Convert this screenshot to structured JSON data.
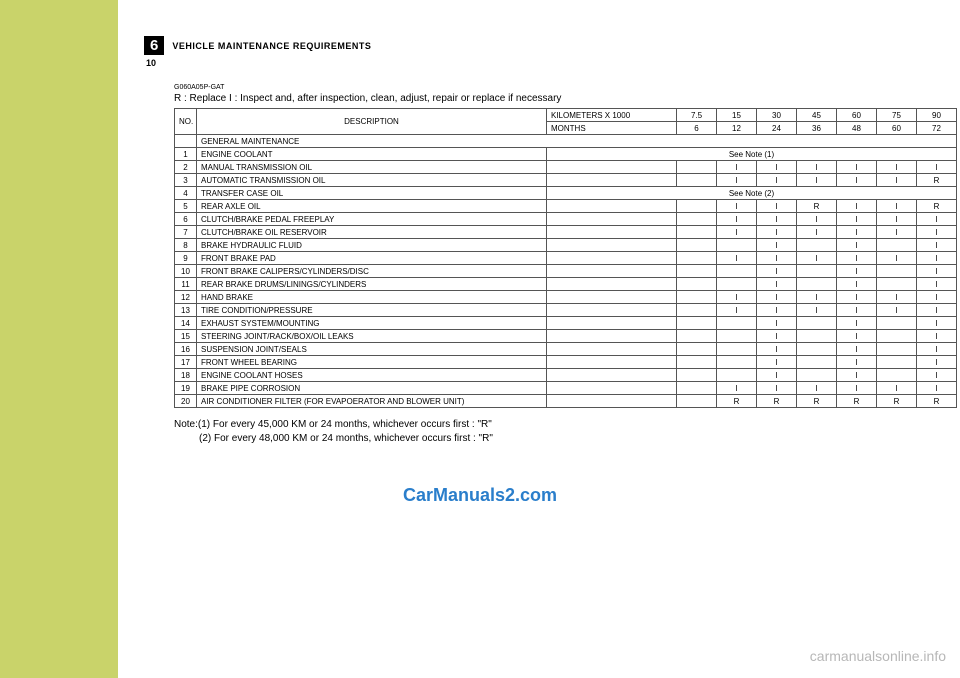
{
  "chapter": {
    "num": "6",
    "title": "VEHICLE  MAINTENANCE  REQUIREMENTS"
  },
  "page_num": "10",
  "code": "G060A05P-GAT",
  "legend": "R : Replace     I : Inspect and, after inspection, clean, adjust, repair or replace if necessary",
  "header": {
    "no": "NO.",
    "desc": "DESCRIPTION",
    "km_label": "KILOMETERS  X  1000",
    "mo_label": "MONTHS",
    "km": [
      "7.5",
      "15",
      "30",
      "45",
      "60",
      "75",
      "90"
    ],
    "mo": [
      "6",
      "12",
      "24",
      "36",
      "48",
      "60",
      "72"
    ]
  },
  "general_label": "GENERAL  MAINTENANCE",
  "see_note_1": "See  Note  (1)",
  "see_note_2": "See  Note  (2)",
  "rows": [
    {
      "n": "1",
      "d": "ENGINE  COOLANT",
      "type": "note1"
    },
    {
      "n": "2",
      "d": "MANUAL  TRANSMISSION  OIL",
      "v": [
        "",
        "I",
        "I",
        "I",
        "I",
        "I",
        "I"
      ]
    },
    {
      "n": "3",
      "d": "AUTOMATIC  TRANSMISSION  OIL",
      "v": [
        "",
        "I",
        "I",
        "I",
        "I",
        "I",
        "R"
      ]
    },
    {
      "n": "4",
      "d": "TRANSFER  CASE  OIL",
      "type": "note2"
    },
    {
      "n": "5",
      "d": "REAR  AXLE  OIL",
      "v": [
        "",
        "",
        "I",
        "I",
        "R",
        "I",
        "I",
        "R"
      ],
      "shift": true,
      "v6": [
        "",
        "I",
        "I",
        "R",
        "I",
        "I",
        "R"
      ]
    },
    {
      "n": "6",
      "d": "CLUTCH/BRAKE  PEDAL  FREEPLAY",
      "v": [
        "",
        "I",
        "I",
        "I",
        "I",
        "I",
        "I"
      ]
    },
    {
      "n": "7",
      "d": "CLUTCH/BRAKE  OIL  RESERVOIR",
      "v": [
        "",
        "I",
        "I",
        "I",
        "I",
        "I",
        "I"
      ]
    },
    {
      "n": "8",
      "d": "BRAKE  HYDRAULIC  FLUID",
      "v": [
        "",
        "",
        "",
        "I",
        "",
        "I",
        "",
        "I"
      ],
      "v7": [
        "",
        "",
        "I",
        "",
        "I",
        "",
        "I"
      ]
    },
    {
      "n": "9",
      "d": "FRONT  BRAKE  PAD",
      "v": [
        "",
        "I",
        "I",
        "I",
        "I",
        "I",
        "I"
      ]
    },
    {
      "n": "10",
      "d": "FRONT  BRAKE  CALIPERS/CYLINDERS/DISC",
      "v7": [
        "",
        "",
        "I",
        "",
        "I",
        "",
        "I"
      ]
    },
    {
      "n": "11",
      "d": "REAR  BRAKE  DRUMS/LININGS/CYLINDERS",
      "v7": [
        "",
        "",
        "I",
        "",
        "I",
        "",
        "I"
      ]
    },
    {
      "n": "12",
      "d": "HAND  BRAKE",
      "v": [
        "",
        "I",
        "I",
        "I",
        "I",
        "I",
        "I"
      ]
    },
    {
      "n": "13",
      "d": "TIRE  CONDITION/PRESSURE",
      "v": [
        "",
        "I",
        "I",
        "I",
        "I",
        "I",
        "I"
      ]
    },
    {
      "n": "14",
      "d": "EXHAUST  SYSTEM/MOUNTING",
      "v7": [
        "",
        "",
        "I",
        "",
        "I",
        "",
        "I"
      ]
    },
    {
      "n": "15",
      "d": "STEERING  JOINT/RACK/BOX/OIL  LEAKS",
      "v7": [
        "",
        "",
        "I",
        "",
        "I",
        "",
        "I"
      ]
    },
    {
      "n": "16",
      "d": "SUSPENSION  JOINT/SEALS",
      "v7": [
        "",
        "",
        "I",
        "",
        "I",
        "",
        "I"
      ]
    },
    {
      "n": "17",
      "d": "FRONT  WHEEL  BEARING",
      "v7": [
        "",
        "",
        "I",
        "",
        "I",
        "",
        "I"
      ]
    },
    {
      "n": "18",
      "d": "ENGINE  COOLANT  HOSES",
      "v7": [
        "",
        "",
        "I",
        "",
        "I",
        "",
        "I"
      ]
    },
    {
      "n": "19",
      "d": "BRAKE  PIPE  CORROSION",
      "v": [
        "",
        "I",
        "I",
        "I",
        "I",
        "I",
        "I"
      ]
    },
    {
      "n": "20",
      "d": "AIR  CONDITIONER  FILTER  (FOR  EVAPOERATOR  AND  BLOWER  UNIT)",
      "v": [
        "",
        "R",
        "R",
        "R",
        "R",
        "R",
        "R"
      ]
    }
  ],
  "note": {
    "lead": "Note:",
    "l1": "(1) For every 45,000 KM or 24 months, whichever occurs first : \"R\"",
    "l2": "(2) For every 48,000 KM or 24 months, whichever occurs first : \"R\""
  },
  "wm1": "CarManuals2.com",
  "wm2": "carmanualsonline.info"
}
